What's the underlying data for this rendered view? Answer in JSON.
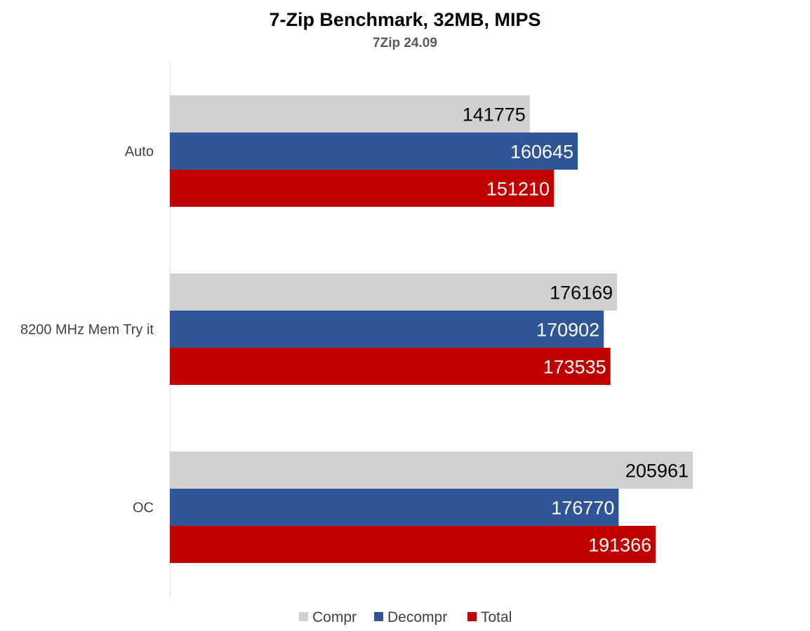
{
  "chart_data": {
    "type": "bar",
    "orientation": "horizontal",
    "title": "7-Zip Benchmark, 32MB, MIPS",
    "subtitle": "7Zip 24.09",
    "categories": [
      "Auto",
      "8200 MHz Mem Try it",
      "OC"
    ],
    "series": [
      {
        "name": "Compr",
        "color": "#d0d0d0",
        "label_color": "#000000",
        "values": [
          141775,
          176169,
          205961
        ]
      },
      {
        "name": "Decompr",
        "color": "#2f5597",
        "label_color": "#ffffff",
        "values": [
          160645,
          170902,
          176770
        ]
      },
      {
        "name": "Total",
        "color": "#c00000",
        "label_color": "#ffffff",
        "values": [
          151210,
          173535,
          191366
        ]
      }
    ],
    "xlim": [
      0,
      250000
    ],
    "grid": false,
    "data_labels": true,
    "legend_position": "bottom"
  }
}
